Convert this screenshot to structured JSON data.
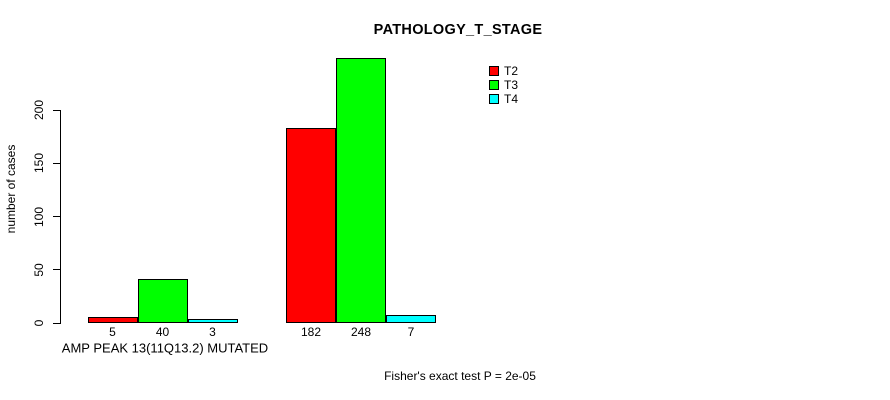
{
  "chart_data": {
    "type": "bar",
    "title": "PATHOLOGY_T_STAGE",
    "ylabel": "number of cases",
    "ylim": [
      0,
      200
    ],
    "yticks": [
      0,
      50,
      100,
      150,
      200
    ],
    "grid": false,
    "legend_position": "top-right",
    "categories": [
      "AMP PEAK 13(11Q13.2) MUTATED",
      ""
    ],
    "series": [
      {
        "name": "T2",
        "color": "#ff0000",
        "values": [
          5,
          182
        ]
      },
      {
        "name": "T3",
        "color": "#00ff00",
        "values": [
          40,
          248
        ]
      },
      {
        "name": "T4",
        "color": "#00ffff",
        "values": [
          3,
          7
        ]
      }
    ],
    "bar_value_labels": [
      [
        5,
        40,
        3
      ],
      [
        182,
        248,
        7
      ]
    ],
    "footnote": "Fisher's exact test P = 2e-05"
  },
  "colors": {
    "axis": "#000000",
    "text": "#000000",
    "background": "#ffffff",
    "t2": "#ff0000",
    "t3": "#00ff00",
    "t4": "#00ffff"
  }
}
